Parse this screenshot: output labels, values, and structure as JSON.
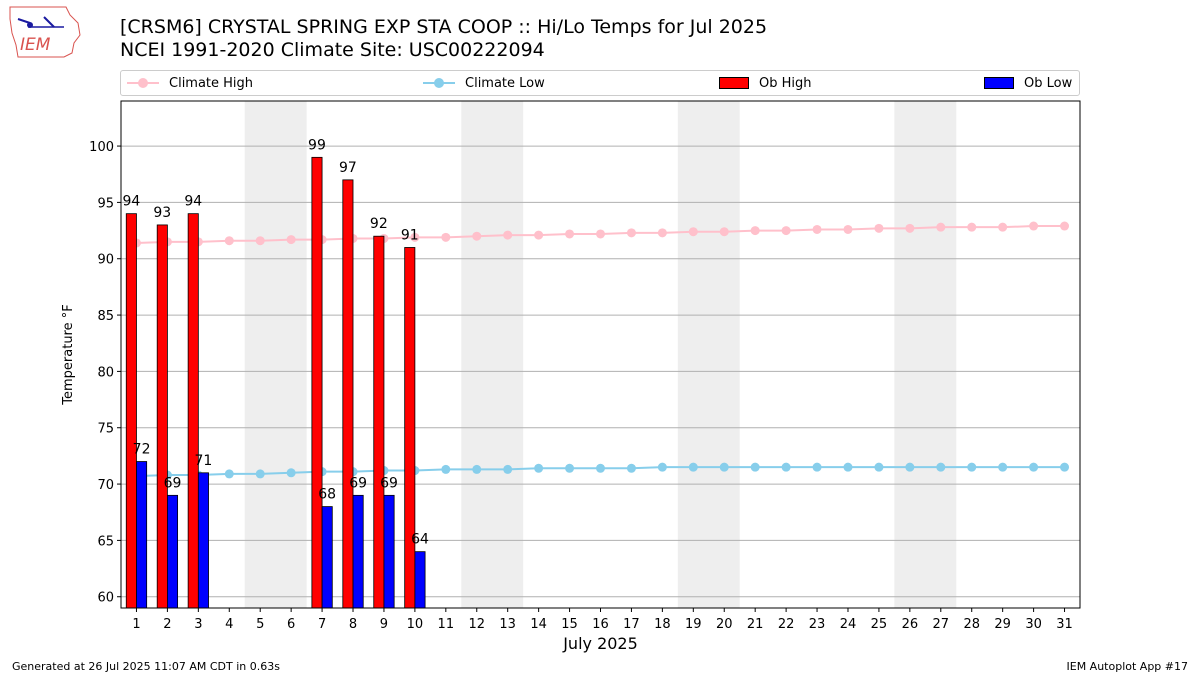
{
  "title_line1": "[CRSM6] CRYSTAL SPRING EXP STA COOP :: Hi/Lo Temps for Jul 2025",
  "title_line2": "NCEI 1991-2020 Climate Site: USC00222094",
  "logo_text": "IEM",
  "legend": {
    "climate_high": "Climate High",
    "climate_low": "Climate Low",
    "ob_high": "Ob High",
    "ob_low": "Ob Low"
  },
  "footer": {
    "generated": "Generated at 26 Jul 2025 11:07 AM CDT in 0.63s",
    "app": "IEM Autoplot App #17"
  },
  "colors": {
    "climate_high": "#ffc0cb",
    "climate_low": "#87ceeb",
    "ob_high": "#ff0000",
    "ob_low": "#0000ff",
    "weekend_shade": "#eeeeee"
  },
  "chart_data": {
    "type": "bar",
    "xlabel": "July 2025",
    "ylabel": "Temperature °F",
    "days": [
      1,
      2,
      3,
      4,
      5,
      6,
      7,
      8,
      9,
      10,
      11,
      12,
      13,
      14,
      15,
      16,
      17,
      18,
      19,
      20,
      21,
      22,
      23,
      24,
      25,
      26,
      27,
      28,
      29,
      30,
      31
    ],
    "ylim": [
      59,
      104
    ],
    "yticks": [
      60,
      65,
      70,
      75,
      80,
      85,
      90,
      95,
      100
    ],
    "grid": "horizontal",
    "legend_position": "top",
    "shaded_weekends": [
      [
        5,
        6
      ],
      [
        12,
        13
      ],
      [
        19,
        20
      ],
      [
        26,
        27
      ]
    ],
    "ob_high": [
      94,
      93,
      94,
      null,
      null,
      null,
      99,
      97,
      92,
      91,
      null,
      null,
      null,
      null,
      null,
      null,
      null,
      null,
      null,
      null,
      null,
      null,
      null,
      null,
      null,
      null,
      null,
      null,
      null,
      null,
      null
    ],
    "ob_low": [
      72,
      69,
      71,
      null,
      null,
      null,
      68,
      69,
      69,
      64,
      null,
      null,
      null,
      null,
      null,
      null,
      null,
      null,
      null,
      null,
      null,
      null,
      null,
      null,
      null,
      null,
      null,
      null,
      null,
      null,
      null
    ],
    "climate_high": [
      91.4,
      91.5,
      91.5,
      91.6,
      91.6,
      91.7,
      91.7,
      91.8,
      91.8,
      91.9,
      91.9,
      92.0,
      92.1,
      92.1,
      92.2,
      92.2,
      92.3,
      92.3,
      92.4,
      92.4,
      92.5,
      92.5,
      92.6,
      92.6,
      92.7,
      92.7,
      92.8,
      92.8,
      92.8,
      92.9,
      92.9
    ],
    "climate_low": [
      70.7,
      70.8,
      70.8,
      70.9,
      70.9,
      71.0,
      71.1,
      71.1,
      71.2,
      71.2,
      71.3,
      71.3,
      71.3,
      71.4,
      71.4,
      71.4,
      71.4,
      71.5,
      71.5,
      71.5,
      71.5,
      71.5,
      71.5,
      71.5,
      71.5,
      71.5,
      71.5,
      71.5,
      71.5,
      71.5,
      71.5
    ]
  }
}
